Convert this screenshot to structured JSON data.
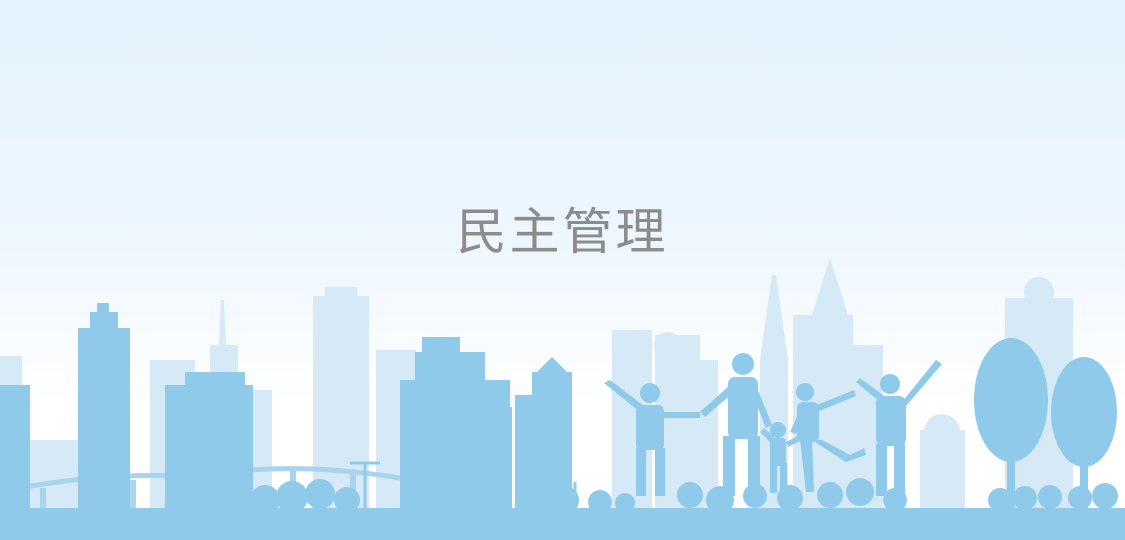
{
  "banner": {
    "title": "民主管理"
  },
  "colors": {
    "sky_top": "#e3f2fd",
    "skyline_back": "#d3e8f7",
    "skyline_front": "#8ecbea",
    "title_text": "#8c8c8c"
  },
  "icons": [
    "city-skyline-illustration",
    "family-silhouette-illustration",
    "tree-illustration"
  ]
}
